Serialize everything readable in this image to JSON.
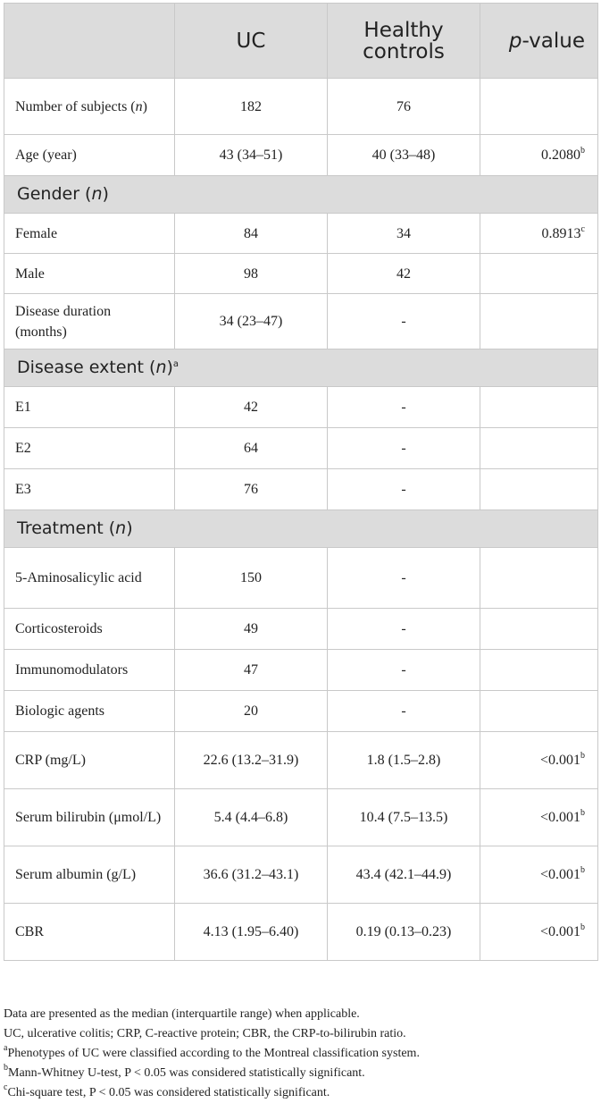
{
  "header": {
    "col1": "",
    "col2": "UC",
    "col3": "Healthy controls",
    "col4_italic": "p",
    "col4_rest": "-value"
  },
  "rows": {
    "number_of_subjects": {
      "label_pre": "Number of subjects (",
      "label_ital": "n",
      "label_post": ")",
      "uc": "182",
      "hc": "76",
      "p": ""
    },
    "age": {
      "label": "Age (year)",
      "uc": "43 (34–51)",
      "hc": "40 (33–48)",
      "p": "0.2080",
      "p_sup": "b"
    },
    "gender_section": {
      "pre": "Gender (",
      "ital": "n",
      "post": ")"
    },
    "female": {
      "label": "Female",
      "uc": "84",
      "hc": "34",
      "p": "0.8913",
      "p_sup": "c"
    },
    "male": {
      "label": "Male",
      "uc": "98",
      "hc": "42",
      "p": ""
    },
    "disease_duration": {
      "label": "Disease duration (months)",
      "uc": "34 (23–47)",
      "hc": "-",
      "p": ""
    },
    "extent_section": {
      "pre": "Disease extent (",
      "ital": "n",
      "post": ")",
      "sup": "a"
    },
    "e1": {
      "label": "E1",
      "uc": "42",
      "hc": "-",
      "p": ""
    },
    "e2": {
      "label": "E2",
      "uc": "64",
      "hc": "-",
      "p": ""
    },
    "e3": {
      "label": "E3",
      "uc": "76",
      "hc": "-",
      "p": ""
    },
    "treatment_section": {
      "pre": "Treatment (",
      "ital": "n",
      "post": ")"
    },
    "asa": {
      "label": "5-Aminosalicylic acid",
      "uc": "150",
      "hc": "-",
      "p": ""
    },
    "corticosteroids": {
      "label": "Corticosteroids",
      "uc": "49",
      "hc": "-",
      "p": ""
    },
    "immunomodulators": {
      "label": "Immunomodulators",
      "uc": "47",
      "hc": "-",
      "p": ""
    },
    "biologic": {
      "label": "Biologic agents",
      "uc": "20",
      "hc": "-",
      "p": ""
    },
    "crp": {
      "label": "CRP (mg/L)",
      "uc": "22.6 (13.2–31.9)",
      "hc": "1.8 (1.5–2.8)",
      "p": "<0.001",
      "p_sup": "b"
    },
    "bilirubin": {
      "label": "Serum bilirubin (μmol/L)",
      "uc": "5.4 (4.4–6.8)",
      "hc": "10.4 (7.5–13.5)",
      "p": "<0.001",
      "p_sup": "b"
    },
    "albumin": {
      "label": "Serum albumin (g/L)",
      "uc": "36.6 (31.2–43.1)",
      "hc": "43.4 (42.1–44.9)",
      "p": "<0.001",
      "p_sup": "b"
    },
    "cbr": {
      "label": "CBR",
      "uc": "4.13 (1.95–6.40)",
      "hc": "0.19 (0.13–0.23)",
      "p": "<0.001",
      "p_sup": "b"
    }
  },
  "notes": {
    "line1": "Data are presented as the median (interquartile range) when applicable.",
    "line2": "UC, ulcerative colitis; CRP, C-reactive protein; CBR, the CRP-to-bilirubin ratio.",
    "line3_sup": "a",
    "line3": "Phenotypes of UC were classified according to the Montreal classification system.",
    "line4_sup": "b",
    "line4": "Mann-Whitney U-test, P < 0.05 was considered statistically significant.",
    "line5_sup": "c",
    "line5": "Chi-square test, P < 0.05 was considered statistically significant."
  },
  "colors": {
    "header_bg": "#dcdcdc",
    "border": "#c9c9c9",
    "text": "#222222"
  }
}
